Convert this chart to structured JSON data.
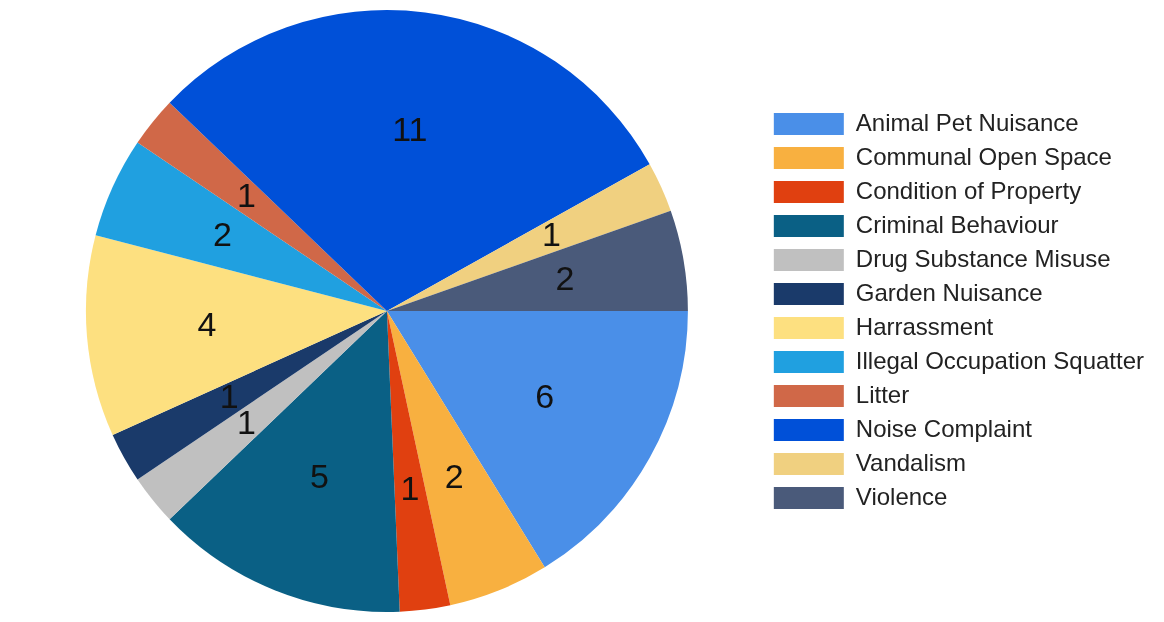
{
  "chart_data": {
    "type": "pie",
    "categories": [
      "Animal Pet Nuisance",
      "Communal Open Space",
      "Condition of Property",
      "Criminal Behaviour",
      "Drug Substance Misuse",
      "Garden Nuisance",
      "Harrassment",
      "Illegal Occupation Squatter",
      "Litter",
      "Noise Complaint",
      "Vandalism",
      "Violence"
    ],
    "values": [
      6,
      2,
      1,
      5,
      1,
      1,
      4,
      2,
      1,
      11,
      1,
      2
    ],
    "colors": [
      "#4a8fe8",
      "#f8b040",
      "#e04010",
      "#0a6085",
      "#c0c0c0",
      "#1a3a6a",
      "#fde080",
      "#20a0e0",
      "#d06848",
      "#0050d8",
      "#f0d080",
      "#4a5a7a"
    ],
    "data_labels": true,
    "legend": "right"
  }
}
